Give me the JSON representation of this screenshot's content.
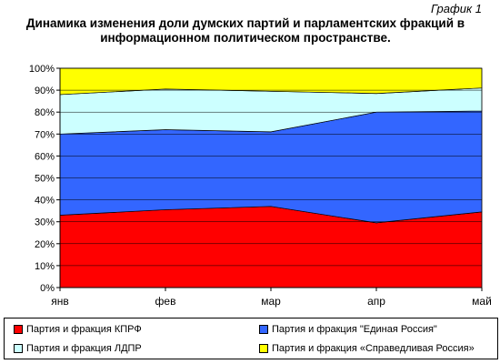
{
  "header": {
    "graph_label": "График 1",
    "title_line1": "Динамика изменения доли думских партий и парламентских фракций в",
    "title_line2": "информационном политическом пространстве."
  },
  "chart_data": {
    "type": "area",
    "stacked": true,
    "categories": [
      "янв",
      "фев",
      "мар",
      "апр",
      "май"
    ],
    "series": [
      {
        "name": "Партия и фракция КПРФ",
        "values": [
          33,
          35.5,
          37,
          29.5,
          34.5
        ],
        "color": "#ff0000"
      },
      {
        "name": "Партия и фракция \"Единая Россия\"",
        "values": [
          37,
          36.5,
          34,
          50.5,
          46
        ],
        "color": "#3366ff"
      },
      {
        "name": "Партия и фракция ЛДПР",
        "values": [
          18,
          18.5,
          18.5,
          8.5,
          10.5
        ],
        "color": "#ccffff"
      },
      {
        "name": "Партия и фракция «Справедливая Россия»",
        "values": [
          12,
          9.5,
          10.5,
          11.5,
          9
        ],
        "color": "#ffff00"
      }
    ],
    "ylim": [
      0,
      100
    ],
    "yticks": [
      "0%",
      "10%",
      "20%",
      "30%",
      "40%",
      "50%",
      "60%",
      "70%",
      "80%",
      "90%",
      "100%"
    ],
    "grid": true,
    "legend": "bottom"
  }
}
